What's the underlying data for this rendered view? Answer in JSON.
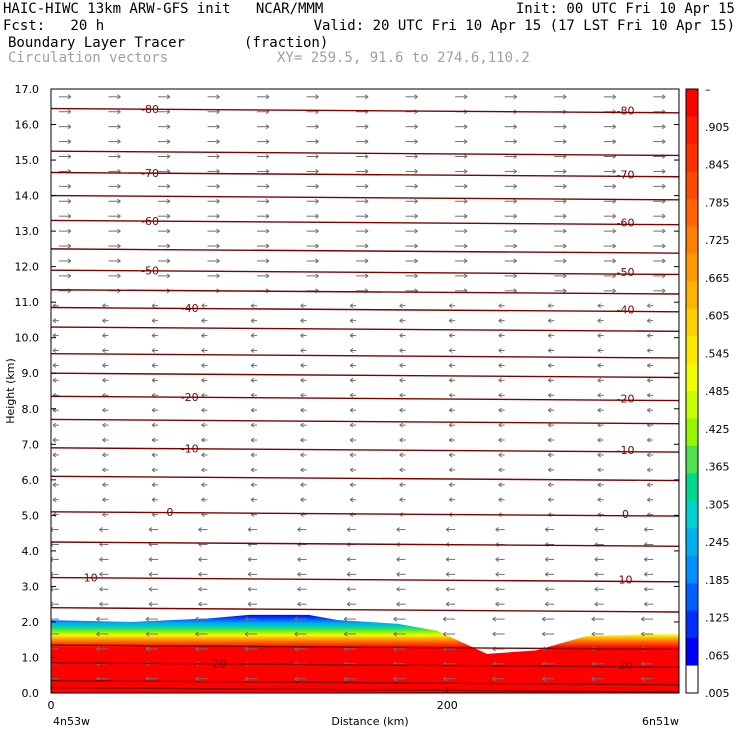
{
  "header": {
    "model_line": "HAIC-HIWC 13km ARW-GFS init   NCAR/MMM",
    "init_line": "Init: 00 UTC Fri 10 Apr 15",
    "fcst_line": "Fcst:   20 h",
    "valid_line": "Valid: 20 UTC Fri 10 Apr 15 (17 LST Fri 10 Apr 15)",
    "field_line": "Boundary Layer Tracer       (fraction)",
    "vector_line": "Circulation vectors",
    "xy_line": "XY= 259.5, 91.6 to 274.6,110.2"
  },
  "chart_data": {
    "type": "heatmap",
    "xlabel": "Distance (km)",
    "ylabel": "Height (km)",
    "xlim": [
      0,
      317
    ],
    "ylim": [
      0,
      17
    ],
    "x_ticks": [
      0,
      200
    ],
    "x_tick_labels": [
      "0",
      "200"
    ],
    "x_endpoint_labels": [
      "4n53w",
      "6n51w"
    ],
    "y_ticks": [
      0,
      1,
      2,
      3,
      4,
      5,
      6,
      7,
      8,
      9,
      10,
      11,
      12,
      13,
      14,
      15,
      16,
      17
    ],
    "y_tick_labels": [
      "0.0",
      "1.0",
      "2.0",
      "3.0",
      "4.0",
      "5.0",
      "6.0",
      "7.0",
      "8.0",
      "9.0",
      "10.0",
      "11.0",
      "12.0",
      "13.0",
      "14.0",
      "15.0",
      "16.0",
      "17.0"
    ],
    "colorbar": {
      "labels": [
        "–",
        ".905",
        ".845",
        ".785",
        ".725",
        ".665",
        ".605",
        ".545",
        ".485",
        ".425",
        ".365",
        ".305",
        ".245",
        ".185",
        ".125",
        ".065",
        ".005"
      ],
      "colors": [
        "#ff0000",
        "#ff1a00",
        "#ff3000",
        "#ff4800",
        "#ff6400",
        "#ff8000",
        "#ff9a00",
        "#ffb400",
        "#ffd000",
        "#ffe800",
        "#f0ff00",
        "#c8ff00",
        "#96f500",
        "#50e050",
        "#00d890",
        "#00d0d0",
        "#00b0f0",
        "#0090ff",
        "#0060ff",
        "#0030ff",
        "#0000ff",
        "#ffffff"
      ]
    },
    "boundary_layer_top": [
      {
        "x": 0,
        "y": 2.05
      },
      {
        "x": 40,
        "y": 2.0
      },
      {
        "x": 80,
        "y": 2.1
      },
      {
        "x": 100,
        "y": 2.2
      },
      {
        "x": 130,
        "y": 2.2
      },
      {
        "x": 145,
        "y": 2.05
      },
      {
        "x": 175,
        "y": 1.95
      },
      {
        "x": 195,
        "y": 1.75
      },
      {
        "x": 220,
        "y": 1.1
      },
      {
        "x": 245,
        "y": 1.2
      },
      {
        "x": 270,
        "y": 1.6
      },
      {
        "x": 300,
        "y": 1.65
      },
      {
        "x": 317,
        "y": 1.65
      }
    ],
    "temperature_contours": [
      {
        "label": "-80",
        "y": 16.45,
        "label_x": [
          50,
          290
        ]
      },
      {
        "label": "-70",
        "y": 14.65,
        "label_x": [
          50,
          290
        ]
      },
      {
        "label": "-60",
        "y": 13.3,
        "label_x": [
          50,
          290
        ]
      },
      {
        "label": "-50",
        "y": 11.9,
        "label_x": [
          50,
          290
        ]
      },
      {
        "label": "-40",
        "y": 10.85,
        "label_x": [
          70,
          290
        ]
      },
      {
        "label": "-20",
        "y": 8.35,
        "label_x": [
          70,
          290
        ]
      },
      {
        "label": "-10",
        "y": 6.9,
        "label_x": [
          70,
          290
        ]
      },
      {
        "label": "0",
        "y": 5.1,
        "label_x": [
          60,
          290
        ]
      },
      {
        "label": "10",
        "y": 3.25,
        "label_x": [
          20,
          290
        ]
      },
      {
        "label": "20",
        "y": 0.85,
        "label_x": [
          85,
          290
        ]
      }
    ],
    "unlabeled_contour_heights": [
      15.25,
      14.0,
      12.5,
      11.35,
      10.3,
      9.55,
      9.0,
      7.7,
      6.1,
      4.25,
      2.4,
      1.35,
      0.35,
      0.15
    ]
  }
}
